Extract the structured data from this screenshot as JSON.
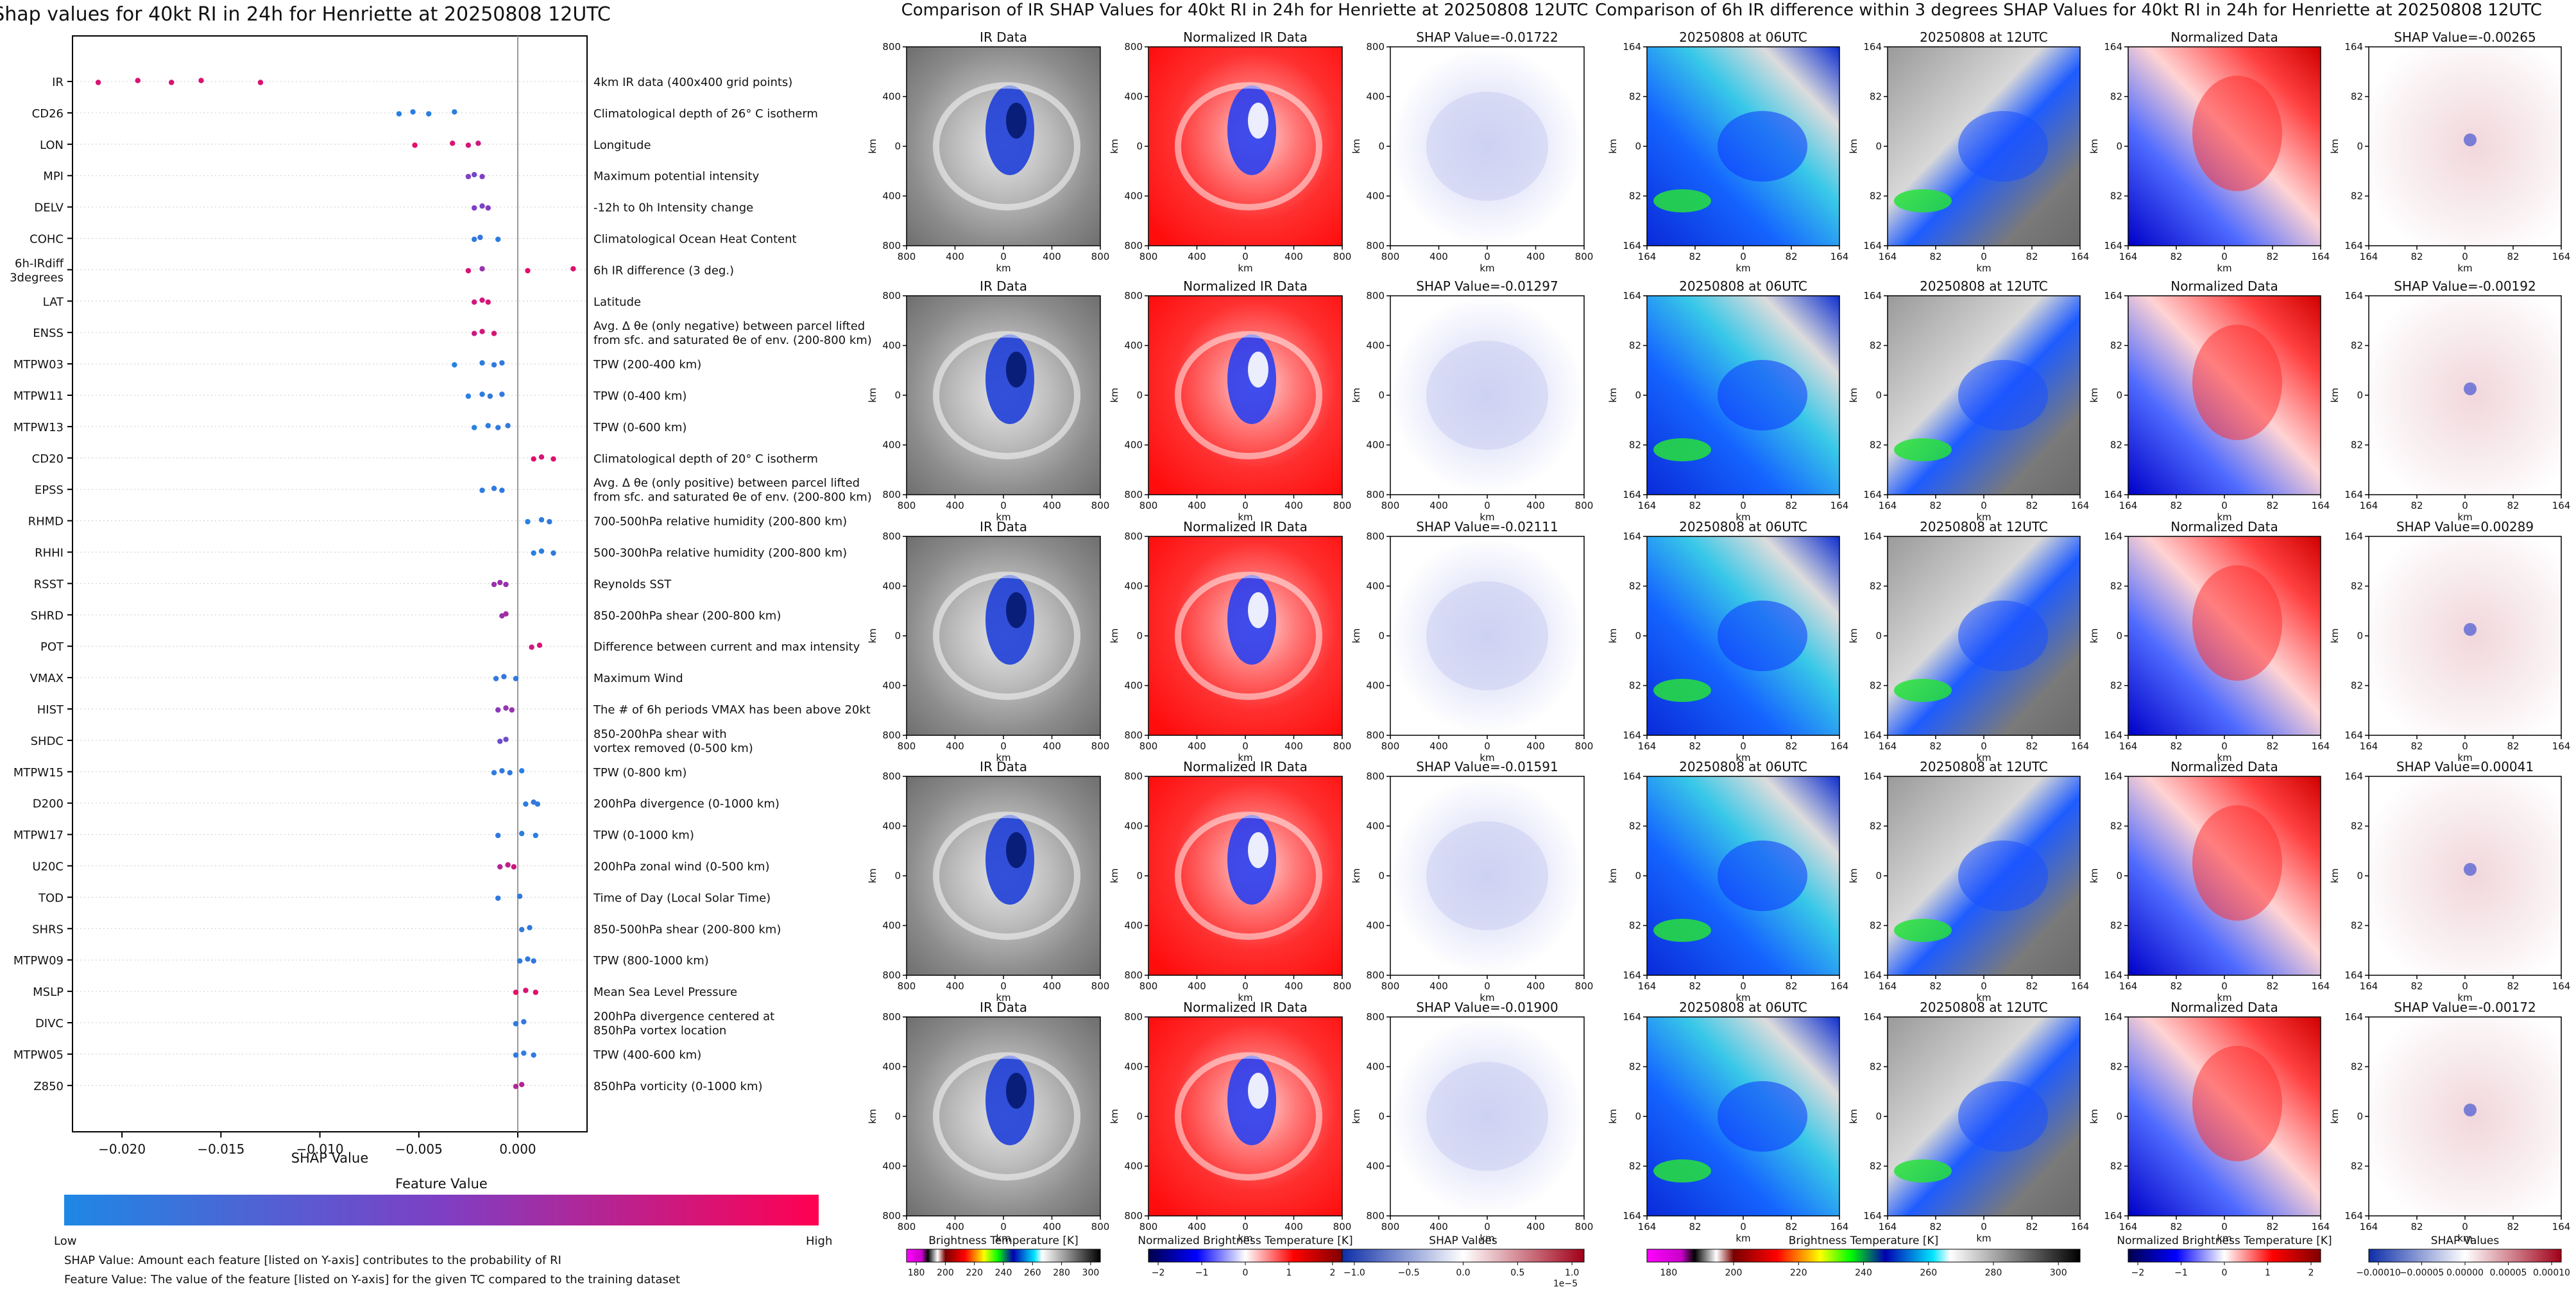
{
  "chart_data": [
    {
      "type": "scatter",
      "title": "Shap values for 40kt RI in 24h for Henriette at 20250808 12UTC",
      "xlabel": "SHAP Value",
      "xlim": [
        -0.0225,
        0.0035
      ],
      "xticks": [
        {
          "v": -0.02,
          "label": "−0.020"
        },
        {
          "v": -0.015,
          "label": "−0.015"
        },
        {
          "v": -0.01,
          "label": "−0.010"
        },
        {
          "v": -0.005,
          "label": "−0.005"
        },
        {
          "v": 0.0,
          "label": "0.000"
        }
      ],
      "grid": false,
      "features": [
        {
          "name": "IR",
          "desc": "4km IR data (400x400 grid points)",
          "points": [
            [
              -0.0212,
              0.85
            ],
            [
              -0.0192,
              0.86
            ],
            [
              -0.0175,
              0.85
            ],
            [
              -0.016,
              0.86
            ],
            [
              -0.013,
              0.85
            ]
          ]
        },
        {
          "name": "CD26",
          "desc": "Climatological depth of 26° C isotherm",
          "points": [
            [
              -0.006,
              0.05
            ],
            [
              -0.0053,
              0.08
            ],
            [
              -0.0045,
              0.06
            ],
            [
              -0.0032,
              0.07
            ]
          ]
        },
        {
          "name": "LON",
          "desc": "Longitude",
          "points": [
            [
              -0.0052,
              0.9
            ],
            [
              -0.0033,
              0.85
            ],
            [
              -0.0025,
              0.82
            ],
            [
              -0.002,
              0.8
            ]
          ]
        },
        {
          "name": "MPI",
          "desc": "Maximum potential intensity",
          "points": [
            [
              -0.0025,
              0.5
            ],
            [
              -0.0022,
              0.45
            ],
            [
              -0.0018,
              0.5
            ]
          ]
        },
        {
          "name": "DELV",
          "desc": "-12h to 0h Intensity change",
          "points": [
            [
              -0.0022,
              0.5
            ],
            [
              -0.0018,
              0.48
            ],
            [
              -0.0015,
              0.52
            ]
          ]
        },
        {
          "name": "COHC",
          "desc": "Climatological Ocean Heat Content",
          "points": [
            [
              -0.0022,
              0.1
            ],
            [
              -0.0019,
              0.12
            ],
            [
              -0.001,
              0.08
            ]
          ]
        },
        {
          "name": "6h-IRdiff\n3degrees",
          "desc": "6h IR difference (3 deg.)",
          "points": [
            [
              -0.0025,
              0.85
            ],
            [
              -0.0018,
              0.6
            ],
            [
              0.0005,
              0.9
            ],
            [
              0.0028,
              0.88
            ]
          ]
        },
        {
          "name": "LAT",
          "desc": "Latitude",
          "points": [
            [
              -0.0022,
              0.8
            ],
            [
              -0.0018,
              0.82
            ],
            [
              -0.0015,
              0.85
            ]
          ]
        },
        {
          "name": "ENSS",
          "desc": "Avg. Δ θe (only negative) between parcel lifted\nfrom sfc. and saturated θe of env. (200-800 km)",
          "points": [
            [
              -0.0022,
              0.8
            ],
            [
              -0.0018,
              0.82
            ],
            [
              -0.0012,
              0.85
            ]
          ]
        },
        {
          "name": "MTPW03",
          "desc": "TPW (200-400 km)",
          "points": [
            [
              -0.0032,
              0.05
            ],
            [
              -0.0018,
              0.08
            ],
            [
              -0.0012,
              0.1
            ],
            [
              -0.0008,
              0.1
            ]
          ]
        },
        {
          "name": "MTPW11",
          "desc": "TPW (0-400 km)",
          "points": [
            [
              -0.0025,
              0.05
            ],
            [
              -0.0018,
              0.08
            ],
            [
              -0.0014,
              0.1
            ],
            [
              -0.0008,
              0.1
            ]
          ]
        },
        {
          "name": "MTPW13",
          "desc": "TPW (0-600 km)",
          "points": [
            [
              -0.0022,
              0.05
            ],
            [
              -0.0015,
              0.08
            ],
            [
              -0.001,
              0.1
            ],
            [
              -0.0005,
              0.1
            ]
          ]
        },
        {
          "name": "CD20",
          "desc": "Climatological depth of 20° C isotherm",
          "points": [
            [
              0.0008,
              0.9
            ],
            [
              0.0012,
              0.85
            ],
            [
              0.0018,
              0.88
            ]
          ]
        },
        {
          "name": "EPSS",
          "desc": "Avg. Δ θe (only positive) between parcel lifted\nfrom sfc. and saturated θe of env. (200-800 km)",
          "points": [
            [
              -0.0018,
              0.08
            ],
            [
              -0.0012,
              0.1
            ],
            [
              -0.0008,
              0.1
            ]
          ]
        },
        {
          "name": "RHMD",
          "desc": "700-500hPa relative humidity (200-800 km)",
          "points": [
            [
              0.0005,
              0.05
            ],
            [
              0.0012,
              0.08
            ],
            [
              0.0016,
              0.1
            ]
          ]
        },
        {
          "name": "RHHI",
          "desc": "500-300hPa relative humidity (200-800 km)",
          "points": [
            [
              0.0008,
              0.05
            ],
            [
              0.0012,
              0.08
            ],
            [
              0.0018,
              0.1
            ]
          ]
        },
        {
          "name": "RSST",
          "desc": "Reynolds SST",
          "points": [
            [
              -0.0012,
              0.6
            ],
            [
              -0.0009,
              0.62
            ],
            [
              -0.0006,
              0.6
            ]
          ]
        },
        {
          "name": "SHRD",
          "desc": "850-200hPa shear (200-800 km)",
          "points": [
            [
              -0.0008,
              0.6
            ],
            [
              -0.0006,
              0.65
            ]
          ]
        },
        {
          "name": "POT",
          "desc": "Difference between current and max intensity",
          "points": [
            [
              0.0007,
              0.8
            ],
            [
              0.0011,
              0.85
            ]
          ]
        },
        {
          "name": "VMAX",
          "desc": "Maximum Wind",
          "points": [
            [
              -0.0011,
              0.1
            ],
            [
              -0.0007,
              0.12
            ],
            [
              -0.0001,
              0.1
            ]
          ]
        },
        {
          "name": "HIST",
          "desc": "The # of 6h periods VMAX has been above 20kt",
          "points": [
            [
              -0.001,
              0.55
            ],
            [
              -0.0006,
              0.58
            ],
            [
              -0.0003,
              0.6
            ]
          ]
        },
        {
          "name": "SHDC",
          "desc": "850-200hPa shear with\nvortex removed (0-500 km)",
          "points": [
            [
              -0.0009,
              0.4
            ],
            [
              -0.0006,
              0.42
            ]
          ]
        },
        {
          "name": "MTPW15",
          "desc": "TPW (0-800 km)",
          "points": [
            [
              -0.0012,
              0.08
            ],
            [
              -0.0008,
              0.1
            ],
            [
              -0.0004,
              0.1
            ],
            [
              0.0002,
              0.05
            ]
          ]
        },
        {
          "name": "D200",
          "desc": "200hPa divergence (0-1000 km)",
          "points": [
            [
              0.0004,
              0.08
            ],
            [
              0.0008,
              0.1
            ],
            [
              0.001,
              0.1
            ]
          ]
        },
        {
          "name": "MTPW17",
          "desc": "TPW (0-1000 km)",
          "points": [
            [
              -0.001,
              0.1
            ],
            [
              0.0002,
              0.08
            ],
            [
              0.0009,
              0.05
            ]
          ]
        },
        {
          "name": "U20C",
          "desc": "200hPa zonal wind (0-500 km)",
          "points": [
            [
              -0.0009,
              0.7
            ],
            [
              -0.0005,
              0.75
            ],
            [
              -0.0002,
              0.8
            ]
          ]
        },
        {
          "name": "TOD",
          "desc": "Time of Day (Local Solar Time)",
          "points": [
            [
              -0.001,
              0.1
            ],
            [
              0.0001,
              0.1
            ]
          ]
        },
        {
          "name": "SHRS",
          "desc": "850-500hPa shear (200-800 km)",
          "points": [
            [
              0.0002,
              0.1
            ],
            [
              0.0006,
              0.1
            ]
          ]
        },
        {
          "name": "MTPW09",
          "desc": "TPW (800-1000 km)",
          "points": [
            [
              0.0001,
              0.1
            ],
            [
              0.0005,
              0.08
            ],
            [
              0.0008,
              0.1
            ]
          ]
        },
        {
          "name": "MSLP",
          "desc": "Mean Sea Level Pressure",
          "points": [
            [
              -0.0001,
              0.9
            ],
            [
              0.0004,
              0.85
            ],
            [
              0.0009,
              0.88
            ]
          ]
        },
        {
          "name": "DIVC",
          "desc": "200hPa divergence centered at\n850hPa vortex location",
          "points": [
            [
              -0.0001,
              0.1
            ],
            [
              0.0003,
              0.12
            ]
          ]
        },
        {
          "name": "MTPW05",
          "desc": "TPW (400-600 km)",
          "points": [
            [
              -0.0001,
              0.1
            ],
            [
              0.0003,
              0.08
            ],
            [
              0.0008,
              0.1
            ]
          ]
        },
        {
          "name": "Z850",
          "desc": "850hPa vorticity (0-1000 km)",
          "points": [
            [
              -0.0001,
              0.7
            ],
            [
              0.0002,
              0.72
            ]
          ]
        }
      ],
      "colorbar": {
        "title": "Feature Value",
        "low": "Low",
        "high": "High",
        "colors": [
          "#1e88e5",
          "#7e3fc4",
          "#ff0052"
        ]
      },
      "footnotes": [
        "SHAP Value: Amount each feature [listed on Y-axis] contributes to the probability of RI",
        "Feature Value: The value of the feature [listed on Y-axis] for the given TC compared to the training dataset"
      ]
    },
    {
      "type": "heatmap",
      "title": "Comparison of IR SHAP Values for 40kt RI in 24h for Henriette at 20250808 12UTC",
      "column_titles": [
        "IR Data",
        "Normalized IR Data"
      ],
      "shap_values": [
        "SHAP Value=-0.01722",
        "SHAP Value=-0.01297",
        "SHAP Value=-0.02111",
        "SHAP Value=-0.01591",
        "SHAP Value=-0.01900"
      ],
      "axis_label": "km",
      "x_ticks": [
        "800",
        "400",
        "0",
        "400",
        "800"
      ],
      "y_ticks": [
        "800",
        "400",
        "0",
        "400",
        "800"
      ],
      "colorbars": [
        {
          "label": "Brightness Temperature [K]",
          "ticks": [
            "180",
            "200",
            "220",
            "240",
            "260",
            "280",
            "300"
          ]
        },
        {
          "label": "Normalized Brightness Temperature [K]",
          "ticks": [
            "−2",
            "−1",
            "0",
            "1",
            "2"
          ]
        },
        {
          "label": "SHAP Values",
          "ticks": [
            "−1.0",
            "−0.5",
            "0.0",
            "0.5",
            "1.0"
          ],
          "multiplier": "1e−5"
        }
      ]
    },
    {
      "type": "heatmap",
      "title": "Comparison of 6h IR difference within 3 degrees SHAP Values for 40kt RI in 24h for Henriette at 20250808 12UTC",
      "column_titles": [
        "20250808 at 06UTC",
        "20250808 at 12UTC",
        "Normalized Data"
      ],
      "shap_values": [
        "SHAP Value=-0.00265",
        "SHAP Value=-0.00192",
        "SHAP Value=0.00289",
        "SHAP Value=0.00041",
        "SHAP Value=-0.00172"
      ],
      "axis_label": "km",
      "x_ticks": [
        "164",
        "82",
        "0",
        "82",
        "164"
      ],
      "y_ticks": [
        "164",
        "82",
        "0",
        "82",
        "164"
      ],
      "colorbars": [
        {
          "label": "Brightness Temperature [K]",
          "ticks": [
            "180",
            "200",
            "220",
            "240",
            "260",
            "280",
            "300"
          ]
        },
        {
          "label": "Normalized Brightness Temperature [K]",
          "ticks": [
            "−2",
            "−1",
            "0",
            "1",
            "2"
          ]
        },
        {
          "label": "SHAP Values",
          "ticks": [
            "−0.00010",
            "−0.00005",
            "0.00000",
            "0.00005",
            "0.00010"
          ]
        }
      ]
    }
  ]
}
